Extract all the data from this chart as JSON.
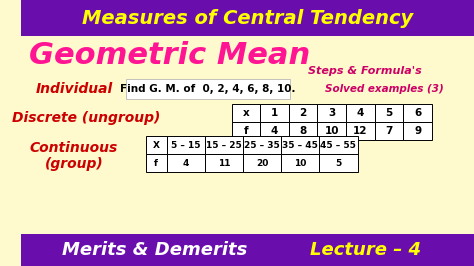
{
  "title_top": "Measures of Central Tendency",
  "title_main": "Geometric Mean",
  "subtitle_right": "Steps & Formula's",
  "individual_label": "Individual",
  "individual_text": "Find G. M. of  0, 2, 4, 6, 8, 10.",
  "solved_text": "Solved examples (3)",
  "discrete_label": "Discrete (ungroup)",
  "continuous_label": "Continuous\n(group)",
  "bottom_left": "Merits & Demerits",
  "bottom_right": "Lecture – 4",
  "top_bg": "#6a0dad",
  "main_bg": "#fffacd",
  "bottom_bg": "#6a0dad",
  "table1_headers": [
    "x",
    "1",
    "2",
    "3",
    "4",
    "5",
    "6"
  ],
  "table1_row2": [
    "f",
    "4",
    "8",
    "10",
    "12",
    "7",
    "9"
  ],
  "table2_headers": [
    "X",
    "5 – 15",
    "15 – 25",
    "25 – 35",
    "35 – 45",
    "45 – 55"
  ],
  "table2_row2": [
    "f",
    "4",
    "11",
    "20",
    "10",
    "5"
  ]
}
